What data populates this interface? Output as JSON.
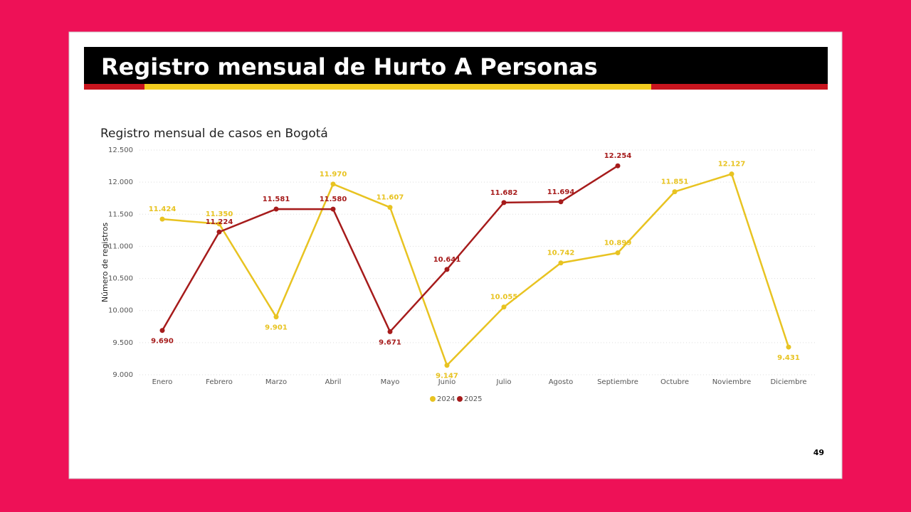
{
  "slide_title": "Registro mensual de Hurto A Personas",
  "page_number": "49",
  "chart_data": {
    "type": "line",
    "title": "Registro mensual de casos en Bogotá",
    "y_label": "Número de registros",
    "categories": [
      "Enero",
      "Febrero",
      "Marzo",
      "Abril",
      "Mayo",
      "Junio",
      "Julio",
      "Agosto",
      "Septiembre",
      "Octubre",
      "Noviembre",
      "Diciembre"
    ],
    "series": [
      {
        "name": "2024",
        "color": "#e8c321",
        "values": [
          11424,
          11350,
          9901,
          11970,
          11607,
          9147,
          10055,
          10742,
          10899,
          11851,
          12127,
          9431
        ],
        "value_labels": [
          "11.424",
          "11.350",
          "9.901",
          "11.970",
          "11.607",
          "9.147",
          "10.055",
          "10.742",
          "10.899",
          "11.851",
          "12.127",
          "9.431"
        ]
      },
      {
        "name": "2025",
        "color": "#a61b1b",
        "values": [
          9690,
          11224,
          11581,
          11580,
          9671,
          10641,
          11682,
          11694,
          12254,
          null,
          null,
          null
        ],
        "value_labels": [
          "9.690",
          "11.224",
          "11.581",
          "11.580",
          "9.671",
          "10.641",
          "11.682",
          "11.694",
          "12.254",
          null,
          null,
          null
        ]
      }
    ],
    "ylim": [
      9000,
      12500
    ],
    "yticks": [
      {
        "value": 9000,
        "label": "9.000"
      },
      {
        "value": 9500,
        "label": "9.500"
      },
      {
        "value": 10000,
        "label": "10.000"
      },
      {
        "value": 10500,
        "label": "10.500"
      },
      {
        "value": 11000,
        "label": "11.000"
      },
      {
        "value": 11500,
        "label": "11.500"
      },
      {
        "value": 12000,
        "label": "12.000"
      },
      {
        "value": 12500,
        "label": "12.500"
      }
    ],
    "grid": true,
    "legend": "bottom"
  }
}
